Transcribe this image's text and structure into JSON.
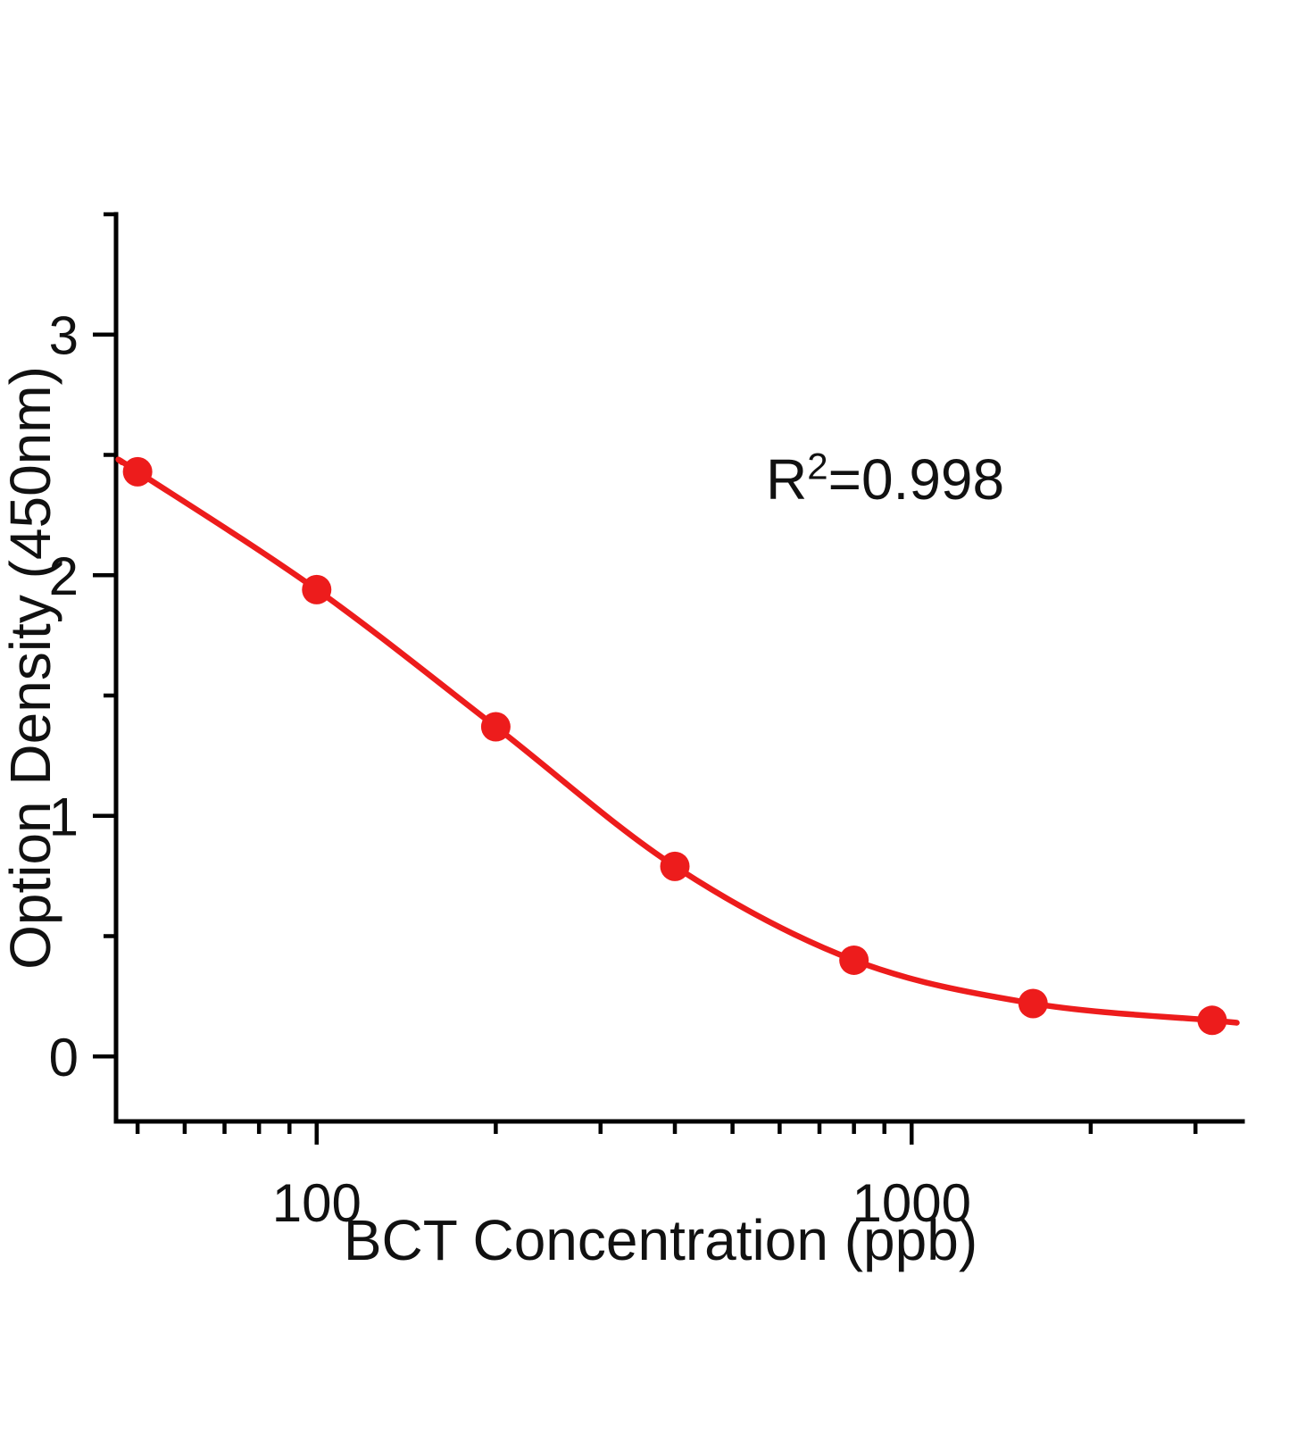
{
  "chart_data": {
    "type": "scatter",
    "title": "",
    "xlabel": "BCT Concentration (ppb)",
    "ylabel": "Option Density (450nm)",
    "x_scale": "log",
    "x": [
      50,
      100,
      200,
      400,
      800,
      1600,
      3200
    ],
    "y": [
      2.43,
      1.94,
      1.37,
      0.79,
      0.4,
      0.22,
      0.15
    ],
    "xlim": [
      46,
      3600
    ],
    "ylim": [
      -0.27,
      3.5
    ],
    "x_major_ticks": [
      {
        "value": 100,
        "label": "100"
      },
      {
        "value": 1000,
        "label": "1000"
      }
    ],
    "x_minor_ticks": [
      50,
      60,
      70,
      80,
      90,
      200,
      300,
      400,
      500,
      600,
      700,
      800,
      900,
      2000,
      3000
    ],
    "y_major_ticks": [
      {
        "value": 0,
        "label": "0"
      },
      {
        "value": 1,
        "label": "1"
      },
      {
        "value": 2,
        "label": "2"
      },
      {
        "value": 3,
        "label": "3"
      }
    ],
    "y_minor_ticks": [
      0.5,
      1.5,
      2.5,
      3.5
    ],
    "series_color": "#ed1c1c",
    "axis_color": "#000000",
    "grid": false,
    "legend": null,
    "annotation": {
      "text": "R²=0.998",
      "base": "R",
      "sup": "2",
      "rest": "=0.998"
    },
    "curve_extension": {
      "x_start": 47,
      "y_start": 2.47,
      "x_end": 3520,
      "y_end": 0.14
    }
  }
}
